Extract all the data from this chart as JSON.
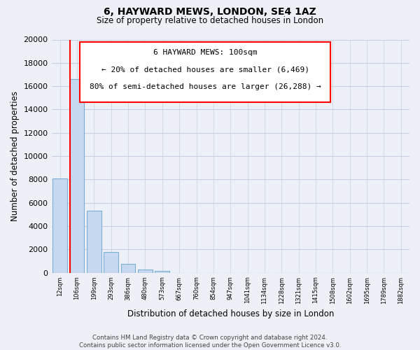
{
  "title": "6, HAYWARD MEWS, LONDON, SE4 1AZ",
  "subtitle": "Size of property relative to detached houses in London",
  "xlabel": "Distribution of detached houses by size in London",
  "ylabel": "Number of detached properties",
  "bar_labels": [
    "12sqm",
    "106sqm",
    "199sqm",
    "293sqm",
    "386sqm",
    "480sqm",
    "573sqm",
    "667sqm",
    "760sqm",
    "854sqm",
    "947sqm",
    "1041sqm",
    "1134sqm",
    "1228sqm",
    "1321sqm",
    "1415sqm",
    "1508sqm",
    "1602sqm",
    "1695sqm",
    "1789sqm",
    "1882sqm"
  ],
  "bar_values": [
    8100,
    16600,
    5300,
    1800,
    750,
    300,
    150,
    0,
    0,
    0,
    0,
    0,
    0,
    0,
    0,
    0,
    0,
    0,
    0,
    0,
    0
  ],
  "bar_color": "#c6d9f0",
  "bar_edge_color": "#7bafd4",
  "marker_line_color": "red",
  "ylim": [
    0,
    20000
  ],
  "yticks": [
    0,
    2000,
    4000,
    6000,
    8000,
    10000,
    12000,
    14000,
    16000,
    18000,
    20000
  ],
  "annotation_title": "6 HAYWARD MEWS: 100sqm",
  "annotation_line1": "← 20% of detached houses are smaller (6,469)",
  "annotation_line2": "80% of semi-detached houses are larger (26,288) →",
  "footer_line1": "Contains HM Land Registry data © Crown copyright and database right 2024.",
  "footer_line2": "Contains public sector information licensed under the Open Government Licence v3.0.",
  "grid_color": "#c8cfe0",
  "background_color": "#eef0f8"
}
